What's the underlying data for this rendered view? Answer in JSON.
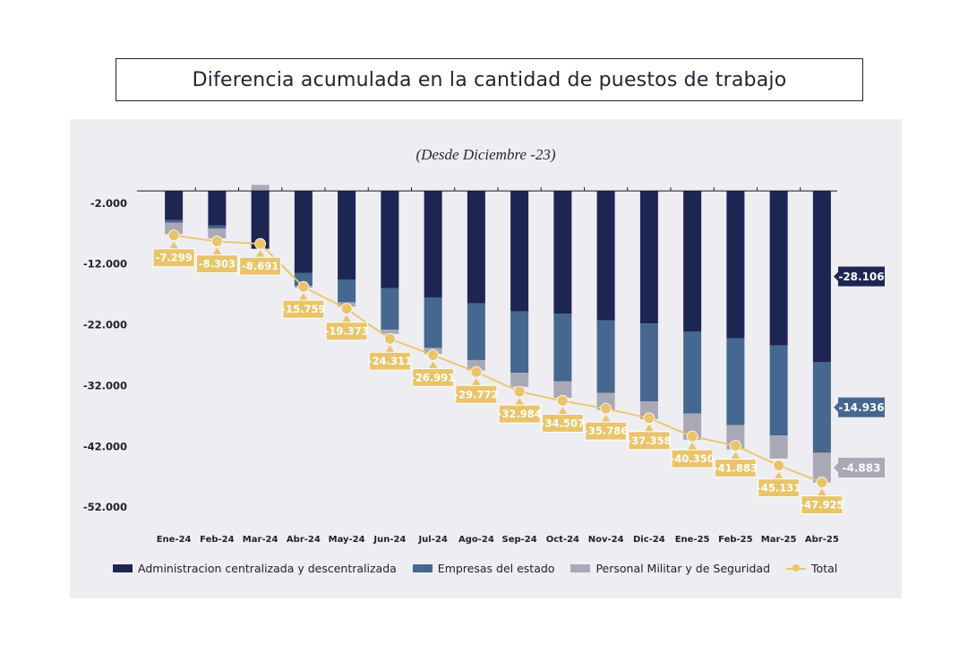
{
  "title": "Diferencia acumulada en la cantidad de puestos de trabajo",
  "chart_data": {
    "type": "bar",
    "subtitle": "(Desde Diciembre -23)",
    "categories": [
      "Ene-24",
      "Feb-24",
      "Mar-24",
      "Abr-24",
      "May-24",
      "Jun-24",
      "Jul-24",
      "Ago-24",
      "Sep-24",
      "Oct-24",
      "Nov-24",
      "Dic-24",
      "Ene-25",
      "Feb-25",
      "Mar-25",
      "Abr-25"
    ],
    "ylim": [
      -53000,
      1500
    ],
    "yticks": [
      -2000,
      -12000,
      -22000,
      -32000,
      -42000,
      -52000
    ],
    "ytick_labels": [
      "-2.000",
      "-12.000",
      "-22.000",
      "-32.000",
      "-42.000",
      "-52.000"
    ],
    "series": [
      {
        "name": "Administracion centralizada y descentralizada",
        "color": "#1d2653",
        "values": [
          -4800,
          -5700,
          -9500,
          -13500,
          -14600,
          -16000,
          -17500,
          -18500,
          -19800,
          -20200,
          -21300,
          -21800,
          -23100,
          -24200,
          -25400,
          -28106
        ]
      },
      {
        "name": "Empresas del estado",
        "color": "#46678f",
        "values": [
          -400,
          -500,
          0,
          -2100,
          -3700,
          -6800,
          -8300,
          -9300,
          -10100,
          -11100,
          -11900,
          -12800,
          -13500,
          -14300,
          -14800,
          -14936
        ]
      },
      {
        "name": "Personal Militar y de Seguridad",
        "color": "#a9a9b6",
        "values": [
          -1900,
          -1600,
          1000,
          -300,
          -700,
          -700,
          -1000,
          -1700,
          -2300,
          -2700,
          -2800,
          -2900,
          -4300,
          -4000,
          -3800,
          -4883
        ]
      }
    ],
    "total": {
      "name": "Total",
      "color": "#e9c46a",
      "values": [
        -7299,
        -8303,
        -8691,
        -15759,
        -19373,
        -24311,
        -26991,
        -29772,
        -32984,
        -34507,
        -35786,
        -37358,
        -40350,
        -41883,
        -45131,
        -47925
      ],
      "labels": [
        "-7.299",
        "-8.303",
        "-8.691",
        "-15.759",
        "-19.373",
        "-24.311",
        "-26.991",
        "-29.772",
        "-32.984",
        "-34.507",
        "-35.786",
        "-37.358",
        "-40.350",
        "-41.883",
        "-45.131",
        "-47.925"
      ]
    },
    "end_labels": [
      {
        "text": "-28.106",
        "series": 0
      },
      {
        "text": "-4.883",
        "series": 2
      },
      {
        "text": "-14.936",
        "series": 1
      }
    ],
    "legend": [
      "Administracion centralizada y descentralizada",
      "Empresas del estado",
      "Personal Militar y de Seguridad",
      "Total"
    ]
  }
}
